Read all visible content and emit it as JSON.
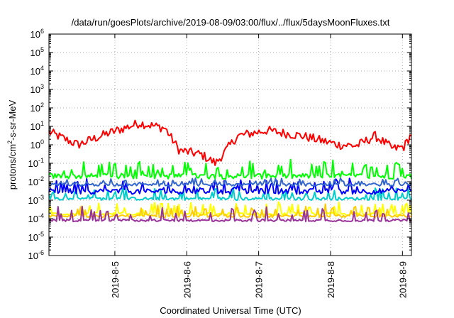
{
  "chart_data": {
    "type": "line",
    "title": "/data/run/goesPlots/archive/2019-08-09/03:00/flux/../flux/5daysMoonFluxes.txt",
    "ylabel_pre": "protons/cm",
    "ylabel_sup": "2",
    "ylabel_post": "-s-sr-MeV",
    "xlabel": "Coordinated Universal Time (UTC)",
    "yscale": "log",
    "ylim_exp": [
      -6,
      6
    ],
    "y_ticks": [
      {
        "base": "10",
        "exp": "-6",
        "e": -6
      },
      {
        "base": "10",
        "exp": "-5",
        "e": -5
      },
      {
        "base": "10",
        "exp": "-4",
        "e": -4
      },
      {
        "base": "10",
        "exp": "-3",
        "e": -3
      },
      {
        "base": "10",
        "exp": "-2",
        "e": -2
      },
      {
        "base": "10",
        "exp": "-1",
        "e": -1
      },
      {
        "base": "10",
        "exp": "0",
        "e": 0
      },
      {
        "base": "10",
        "exp": "1",
        "e": 1
      },
      {
        "base": "10",
        "exp": "2",
        "e": 2
      },
      {
        "base": "10",
        "exp": "3",
        "e": 3
      },
      {
        "base": "10",
        "exp": "4",
        "e": 4
      },
      {
        "base": "10",
        "exp": "5",
        "e": 5
      },
      {
        "base": "10",
        "exp": "6",
        "e": 6
      }
    ],
    "x_range": [
      "2019-08-04 02:00",
      "2019-08-09 03:00"
    ],
    "x_ticks": [
      {
        "label": "2019-8-5",
        "date": "2019-08-05 00:00"
      },
      {
        "label": "2019-8-6",
        "date": "2019-08-06 00:00"
      },
      {
        "label": "2019-8-7",
        "date": "2019-08-07 00:00"
      },
      {
        "label": "2019-8-8",
        "date": "2019-08-08 00:00"
      },
      {
        "label": "2019-8-9",
        "date": "2019-08-09 00:00"
      }
    ],
    "grid": true,
    "series": [
      {
        "color": "#ff0000",
        "base": 3.0,
        "spread": 0.25,
        "spikes": 0,
        "trend": [
          [
            0,
            5
          ],
          [
            0.08,
            1.0
          ],
          [
            0.16,
            4
          ],
          [
            0.25,
            15
          ],
          [
            0.32,
            8
          ],
          [
            0.36,
            0.5
          ],
          [
            0.42,
            0.3
          ],
          [
            0.46,
            0.1
          ],
          [
            0.52,
            3
          ],
          [
            0.6,
            6
          ],
          [
            0.7,
            3
          ],
          [
            0.8,
            1.0
          ],
          [
            0.85,
            0.9
          ],
          [
            0.9,
            3
          ],
          [
            0.95,
            0.6
          ],
          [
            0.98,
            0.8
          ],
          [
            1.0,
            4
          ]
        ]
      },
      {
        "color": "#00ff00",
        "base": 0.02,
        "spread": 0.15,
        "spikes": 0.8
      },
      {
        "color": "#00cccc",
        "base": 0.0012,
        "spread": 0.08,
        "spikes": 0.6
      },
      {
        "color": "#0000ff",
        "base": 0.003,
        "spread": 0.15,
        "spikes": 0.6
      },
      {
        "color": "#3366cc",
        "base": 0.007,
        "spread": 0.08,
        "spikes": 0.3
      },
      {
        "color": "#ffff00",
        "base": 0.00018,
        "spread": 0.08,
        "spikes": 0.6
      },
      {
        "color": "#ffcc00",
        "base": 0.00014,
        "spread": 0.08,
        "spikes": 0.6
      },
      {
        "color": "#993399",
        "base": 8e-05,
        "spread": 0.06,
        "spikes": 0.7
      }
    ]
  }
}
